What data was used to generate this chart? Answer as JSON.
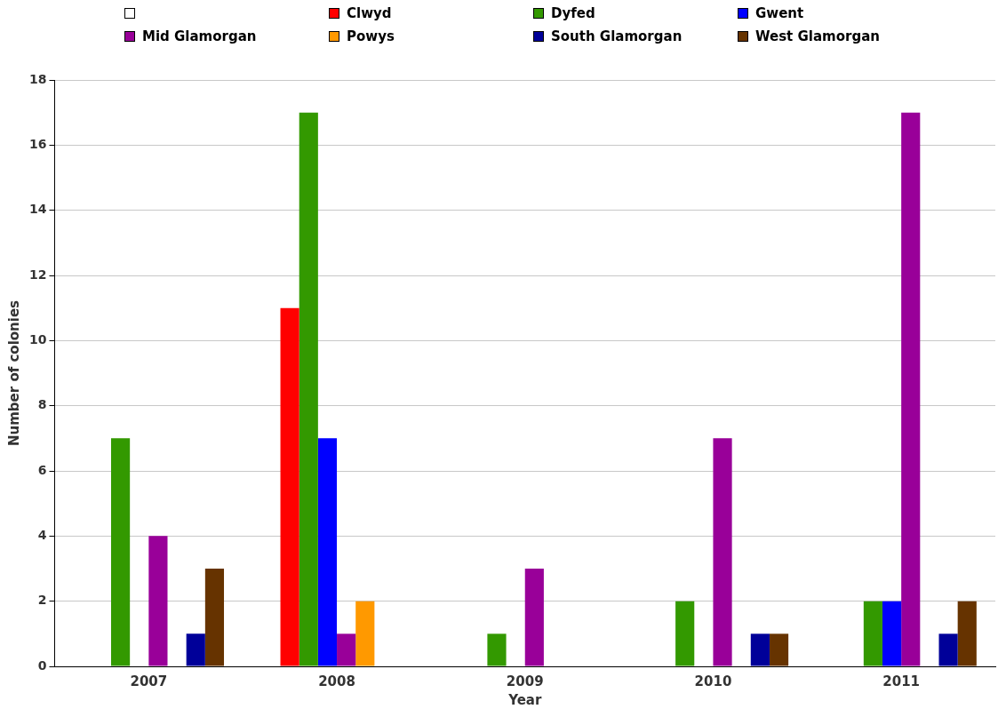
{
  "chart_data": {
    "type": "bar",
    "xlabel": "Year",
    "ylabel": "Number of colonies",
    "categories": [
      "2007",
      "2008",
      "2009",
      "2010",
      "2011"
    ],
    "series": [
      {
        "color": "#ffffff",
        "values": [
          null,
          null,
          null,
          null,
          null
        ]
      },
      {
        "name": "Clwyd",
        "color": "#ff0000",
        "values": [
          null,
          11,
          null,
          null,
          null
        ]
      },
      {
        "name": "Dyfed",
        "color": "#339900",
        "values": [
          7,
          17,
          1,
          2,
          2
        ]
      },
      {
        "name": "Gwent",
        "color": "#0000ff",
        "values": [
          null,
          7,
          null,
          null,
          2
        ]
      },
      {
        "name": "Mid Glamorgan",
        "color": "#990099",
        "values": [
          4,
          1,
          3,
          7,
          17
        ]
      },
      {
        "name": "Powys",
        "color": "#ff9900",
        "values": [
          null,
          2,
          null,
          null,
          null
        ]
      },
      {
        "name": "South Glamorgan",
        "color": "#000099",
        "values": [
          1,
          null,
          null,
          1,
          1
        ]
      },
      {
        "name": "West Glamorgan",
        "color": "#663300",
        "values": [
          3,
          null,
          null,
          1,
          2
        ]
      }
    ],
    "ylim": [
      0,
      18
    ],
    "yticks": [
      0,
      2,
      4,
      6,
      8,
      10,
      12,
      14,
      16,
      18
    ],
    "grid": "y",
    "legend": "top"
  }
}
